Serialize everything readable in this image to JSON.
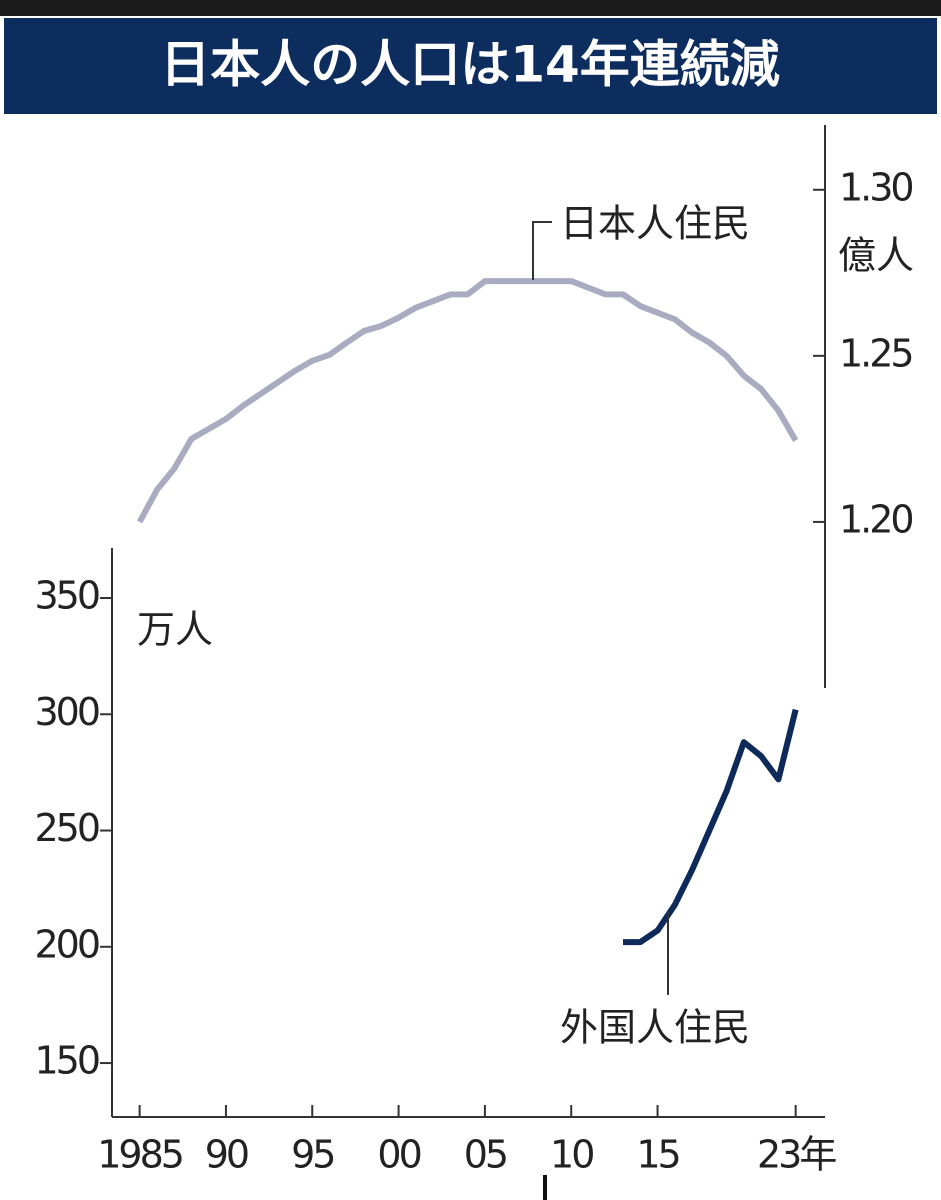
{
  "chart_data": {
    "type": "line",
    "title": "日本人の人口は14年連続減",
    "ylabel": "万人",
    "y2label": "億人",
    "x": [
      1985,
      1986,
      1987,
      1988,
      1989,
      1990,
      1991,
      1992,
      1993,
      1994,
      1995,
      1996,
      1997,
      1998,
      1999,
      2000,
      2001,
      2002,
      2003,
      2004,
      2005,
      2006,
      2007,
      2008,
      2009,
      2010,
      2011,
      2012,
      2013,
      2014,
      2015,
      2016,
      2017,
      2018,
      2019,
      2020,
      2021,
      2022,
      2023
    ],
    "series": [
      {
        "name": "日本人住民",
        "color": "#a9acc0",
        "axis": "y2",
        "values": [
          1.2,
          1.2096,
          1.216,
          1.225,
          1.228,
          1.231,
          1.235,
          1.2385,
          1.242,
          1.2455,
          1.2485,
          1.2503,
          1.254,
          1.2575,
          1.259,
          1.2615,
          1.2645,
          1.2665,
          1.2685,
          1.2685,
          1.2725,
          1.2725,
          1.2725,
          1.2725,
          1.2725,
          1.2725,
          1.2705,
          1.2685,
          1.2685,
          1.265,
          1.263,
          1.261,
          1.257,
          1.254,
          1.25,
          1.244,
          1.24,
          1.2335,
          1.2245
        ]
      },
      {
        "name": "外国人住民",
        "color": "#0d2a5a",
        "values": [
          null,
          null,
          null,
          null,
          null,
          null,
          null,
          null,
          null,
          null,
          null,
          null,
          null,
          null,
          null,
          null,
          null,
          null,
          null,
          null,
          null,
          null,
          null,
          null,
          null,
          null,
          null,
          null,
          202,
          202,
          207,
          218,
          233,
          250,
          267,
          288,
          282,
          272,
          302
        ]
      }
    ],
    "xlim": [
      1983.4,
      2024.7
    ],
    "xticks": [
      1985,
      {
        "value": 1990,
        "label": "90"
      },
      {
        "value": 1995,
        "label": "95"
      },
      {
        "value": 2000,
        "label": "00"
      },
      {
        "value": 2005,
        "label": "05"
      },
      {
        "value": 2010,
        "label": "10"
      },
      {
        "value": 2015,
        "label": "15"
      },
      {
        "value": 2023,
        "label": "23年"
      }
    ],
    "ylim": [
      126.8,
      371.5
    ],
    "yticks": [
      150,
      200,
      250,
      300,
      350
    ],
    "y2lim": [
      1.15,
      1.3195
    ],
    "y2ticks": [
      {
        "value": 1.2,
        "label": "1.20"
      },
      1.25,
      {
        "value": 1.3,
        "label": "1.30"
      }
    ],
    "grid": false
  }
}
